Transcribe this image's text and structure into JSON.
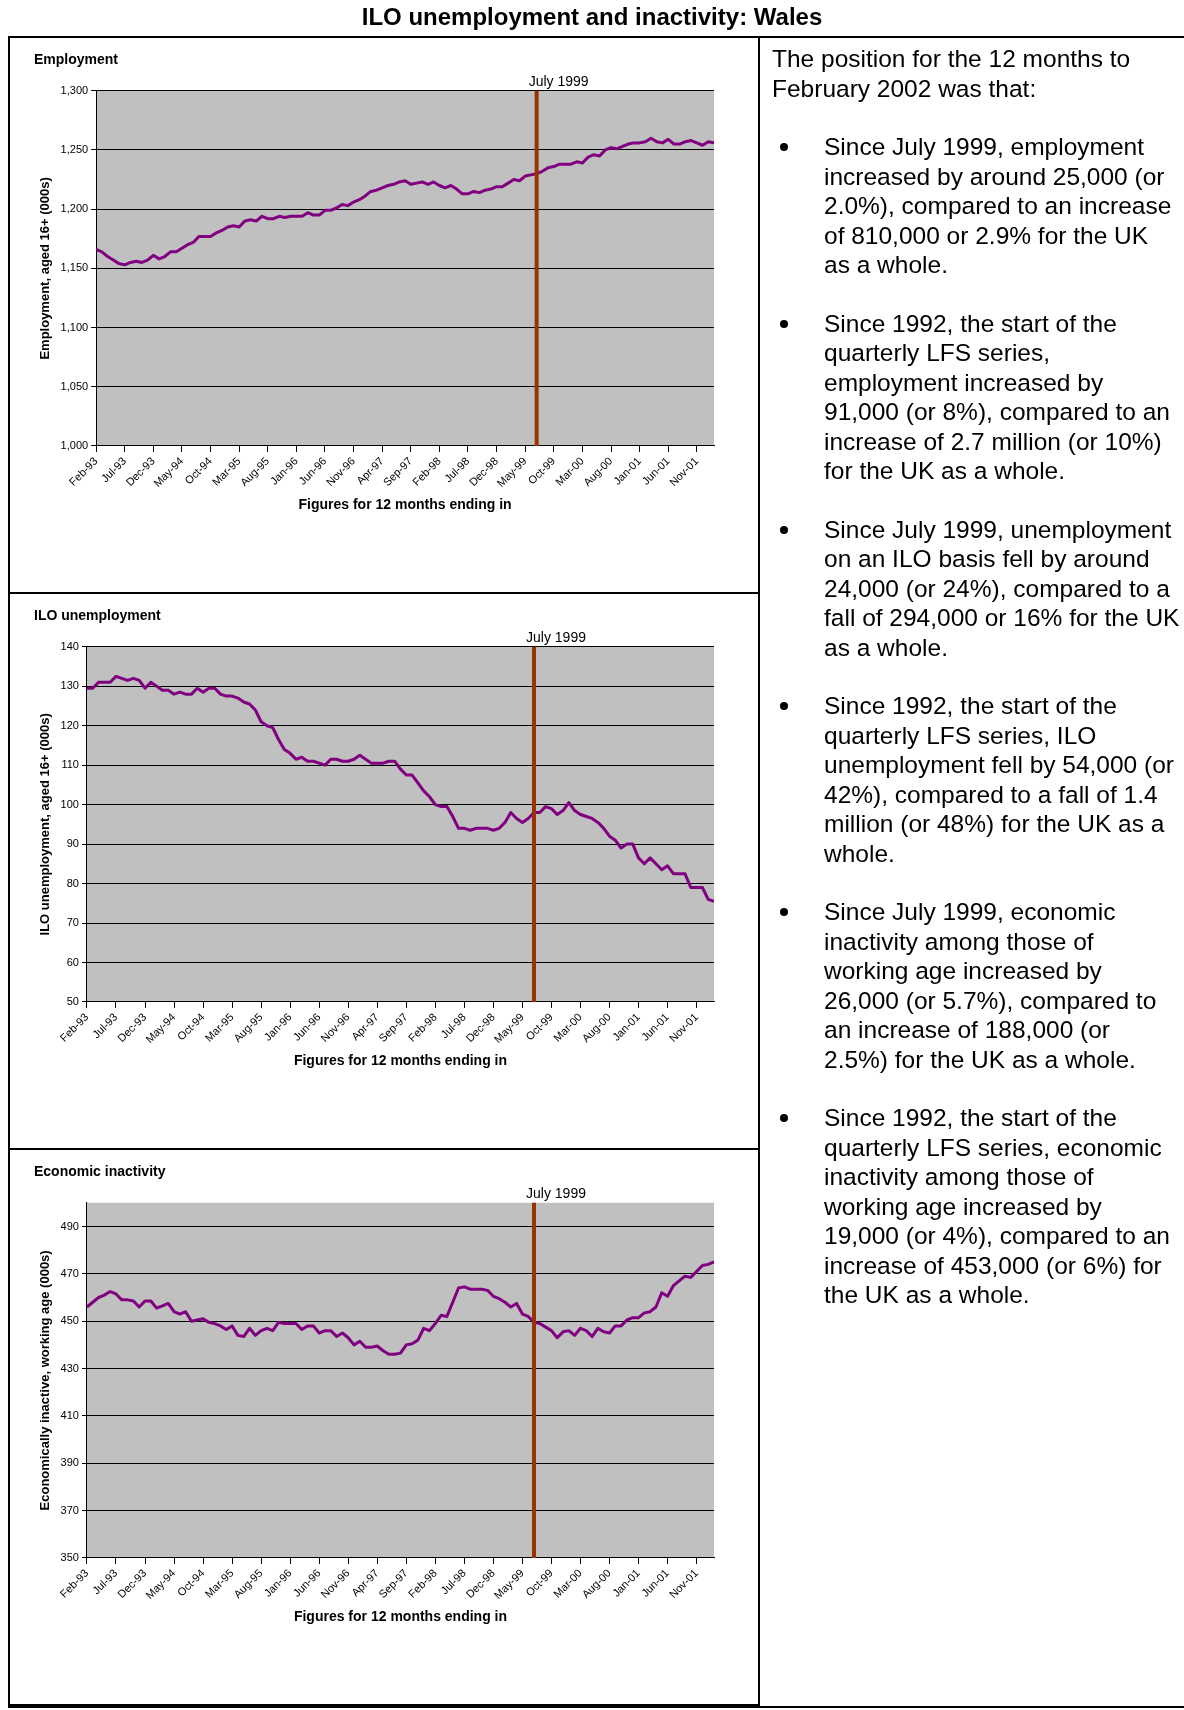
{
  "chart_data": [
    {
      "type": "line",
      "title": "Employment",
      "xlabel": "Figures for 12 months ending in",
      "ylabel": "Employment, aged 16+ (000s)",
      "color": "#800080",
      "grid": "y",
      "x": [
        "1993-02",
        "1993-03",
        "1993-04",
        "1993-05",
        "1993-06",
        "1993-07",
        "1993-08",
        "1993-09",
        "1993-10",
        "1993-11",
        "1993-12",
        "1994-01",
        "1994-02",
        "1994-03",
        "1994-04",
        "1994-05",
        "1994-06",
        "1994-07",
        "1994-08",
        "1994-09",
        "1994-10",
        "1994-11",
        "1994-12",
        "1995-01",
        "1995-02",
        "1995-03",
        "1995-04",
        "1995-05",
        "1995-06",
        "1995-07",
        "1995-08",
        "1995-09",
        "1995-10",
        "1995-11",
        "1995-12",
        "1996-01",
        "1996-02",
        "1996-03",
        "1996-04",
        "1996-05",
        "1996-06",
        "1996-07",
        "1996-08",
        "1996-09",
        "1996-10",
        "1996-11",
        "1996-12",
        "1997-01",
        "1997-02",
        "1997-03",
        "1997-04",
        "1997-05",
        "1997-06",
        "1997-07",
        "1997-08",
        "1997-09",
        "1997-10",
        "1997-11",
        "1997-12",
        "1998-01",
        "1998-02",
        "1998-03",
        "1998-04",
        "1998-05",
        "1998-06",
        "1998-07",
        "1998-08",
        "1998-09",
        "1998-10",
        "1998-11",
        "1998-12",
        "1999-01",
        "1999-02",
        "1999-03",
        "1999-04",
        "1999-05",
        "1999-06",
        "1999-07",
        "1999-08",
        "1999-09",
        "1999-10",
        "1999-11",
        "1999-12",
        "2000-01",
        "2000-02",
        "2000-03",
        "2000-04",
        "2000-05",
        "2000-06",
        "2000-07",
        "2000-08",
        "2000-09",
        "2000-10",
        "2000-11",
        "2000-12",
        "2001-01",
        "2001-02",
        "2001-03",
        "2001-04",
        "2001-05",
        "2001-06",
        "2001-07",
        "2001-08",
        "2001-09",
        "2001-10",
        "2001-11",
        "2001-12",
        "2002-01",
        "2002-02"
      ],
      "values": [
        1166,
        1164,
        1160,
        1157,
        1154,
        1153,
        1155,
        1156,
        1155,
        1157,
        1161,
        1158,
        1160,
        1164,
        1164,
        1167,
        1170,
        1172,
        1177,
        1177,
        1177,
        1180,
        1182,
        1185,
        1186,
        1185,
        1190,
        1191,
        1190,
        1194,
        1192,
        1192,
        1194,
        1193,
        1194,
        1194,
        1194,
        1197,
        1195,
        1195,
        1199,
        1199,
        1201,
        1204,
        1203,
        1206,
        1208,
        1211,
        1215,
        1216,
        1218,
        1220,
        1221,
        1223,
        1224,
        1221,
        1222,
        1223,
        1221,
        1223,
        1220,
        1218,
        1220,
        1217,
        1213,
        1213,
        1215,
        1214,
        1216,
        1217,
        1219,
        1219,
        1222,
        1225,
        1224,
        1228,
        1229,
        1230,
        1232,
        1235,
        1236,
        1238,
        1238,
        1238,
        1240,
        1239,
        1244,
        1246,
        1245,
        1250,
        1252,
        1251,
        1253,
        1255,
        1256,
        1256,
        1257,
        1260,
        1257,
        1256,
        1259,
        1255,
        1255,
        1257,
        1258,
        1256,
        1254,
        1257,
        1256
      ],
      "xlim": [
        "1993-02",
        "2002-02"
      ],
      "xticks": [
        {
          "value": "1993-02",
          "label": "Feb-93"
        },
        {
          "value": "1993-07",
          "label": "Jul-93"
        },
        {
          "value": "1993-12",
          "label": "Dec-93"
        },
        {
          "value": "1994-05",
          "label": "May-94"
        },
        {
          "value": "1994-10",
          "label": "Oct-94"
        },
        {
          "value": "1995-03",
          "label": "Mar-95"
        },
        {
          "value": "1995-08",
          "label": "Aug-95"
        },
        {
          "value": "1996-01",
          "label": "Jan-96"
        },
        {
          "value": "1996-06",
          "label": "Jun-96"
        },
        {
          "value": "1996-11",
          "label": "Nov-96"
        },
        {
          "value": "1997-04",
          "label": "Apr-97"
        },
        {
          "value": "1997-09",
          "label": "Sep-97"
        },
        {
          "value": "1998-02",
          "label": "Feb-98"
        },
        {
          "value": "1998-07",
          "label": "Jul-98"
        },
        {
          "value": "1998-12",
          "label": "Dec-98"
        },
        {
          "value": "1999-05",
          "label": "May-99"
        },
        {
          "value": "1999-10",
          "label": "Oct-99"
        },
        {
          "value": "2000-03",
          "label": "Mar-00"
        },
        {
          "value": "2000-08",
          "label": "Aug-00"
        },
        {
          "value": "2001-01",
          "label": "Jan-01"
        },
        {
          "value": "2001-06",
          "label": "Jun-01"
        },
        {
          "value": "2001-11",
          "label": "Nov-01"
        }
      ],
      "ylim": [
        1000,
        1300
      ],
      "yticks": [
        {
          "value": 1000,
          "label": "1,000"
        },
        {
          "value": 1050,
          "label": "1,050"
        },
        {
          "value": 1100,
          "label": "1,100"
        },
        {
          "value": 1150,
          "label": "1,150"
        },
        {
          "value": 1200,
          "label": "1,200"
        },
        {
          "value": 1250,
          "label": "1,250"
        },
        {
          "value": 1300,
          "label": "1,300"
        }
      ],
      "ref_lines": [
        {
          "axis": "x",
          "value": "1999-07",
          "label": "July 1999",
          "color": "#993300"
        }
      ]
    },
    {
      "type": "line",
      "title": "ILO unemployment",
      "xlabel": "Figures for 12 months ending in",
      "ylabel": "ILO unemployment, aged 16+ (000s)",
      "color": "#800080",
      "grid": "y",
      "x": [
        "1993-02",
        "1993-03",
        "1993-04",
        "1993-05",
        "1993-06",
        "1993-07",
        "1993-08",
        "1993-09",
        "1993-10",
        "1993-11",
        "1993-12",
        "1994-01",
        "1994-02",
        "1994-03",
        "1994-04",
        "1994-05",
        "1994-06",
        "1994-07",
        "1994-08",
        "1994-09",
        "1994-10",
        "1994-11",
        "1994-12",
        "1995-01",
        "1995-02",
        "1995-03",
        "1995-04",
        "1995-05",
        "1995-06",
        "1995-07",
        "1995-08",
        "1995-09",
        "1995-10",
        "1995-11",
        "1995-12",
        "1996-01",
        "1996-02",
        "1996-03",
        "1996-04",
        "1996-05",
        "1996-06",
        "1996-07",
        "1996-08",
        "1996-09",
        "1996-10",
        "1996-11",
        "1996-12",
        "1997-01",
        "1997-02",
        "1997-03",
        "1997-04",
        "1997-05",
        "1997-06",
        "1997-07",
        "1997-08",
        "1997-09",
        "1997-10",
        "1997-11",
        "1997-12",
        "1998-01",
        "1998-02",
        "1998-03",
        "1998-04",
        "1998-05",
        "1998-06",
        "1998-07",
        "1998-08",
        "1998-09",
        "1998-10",
        "1998-11",
        "1998-12",
        "1999-01",
        "1999-02",
        "1999-03",
        "1999-04",
        "1999-05",
        "1999-06",
        "1999-07",
        "1999-08",
        "1999-09",
        "1999-10",
        "1999-11",
        "1999-12",
        "2000-01",
        "2000-02",
        "2000-03",
        "2000-04",
        "2000-05",
        "2000-06",
        "2000-07",
        "2000-08",
        "2000-09",
        "2000-10",
        "2000-11",
        "2000-12",
        "2001-01",
        "2001-02",
        "2001-03",
        "2001-04",
        "2001-05",
        "2001-06",
        "2001-07",
        "2001-08",
        "2001-09",
        "2001-10",
        "2001-11",
        "2001-12",
        "2002-01",
        "2002-02"
      ],
      "values": [
        129.5,
        129.5,
        131,
        131,
        131,
        132.5,
        132,
        131.5,
        132,
        131.5,
        129.5,
        131,
        130,
        129,
        129,
        128,
        128.5,
        128,
        128,
        129.5,
        128.5,
        129.5,
        129.5,
        128,
        127.5,
        127.5,
        127,
        126,
        125.5,
        124,
        121,
        120,
        119.5,
        116.5,
        114,
        113,
        111.5,
        112,
        111,
        111,
        110.5,
        110,
        111.5,
        111.5,
        111,
        111,
        111.5,
        112.5,
        111.5,
        110.5,
        110.5,
        110.5,
        111,
        111,
        109,
        107.5,
        107.5,
        105.5,
        103.5,
        102,
        100,
        99.5,
        99.5,
        97,
        94,
        94,
        93.5,
        94,
        94,
        94,
        93.5,
        94,
        95.5,
        98,
        96.5,
        95.5,
        96.5,
        98,
        98,
        99.5,
        99,
        97.5,
        98.5,
        100.5,
        98.5,
        97.5,
        97,
        96.5,
        95.5,
        94,
        92,
        91,
        89,
        90,
        90,
        86.5,
        85,
        86.5,
        85,
        83.5,
        84.5,
        82.5,
        82.5,
        82.5,
        79,
        79,
        79,
        76,
        75.5
      ],
      "xlim": [
        "1993-02",
        "2002-02"
      ],
      "xticks": [
        {
          "value": "1993-02",
          "label": "Feb-93"
        },
        {
          "value": "1993-07",
          "label": "Jul-93"
        },
        {
          "value": "1993-12",
          "label": "Dec-93"
        },
        {
          "value": "1994-05",
          "label": "May-94"
        },
        {
          "value": "1994-10",
          "label": "Oct-94"
        },
        {
          "value": "1995-03",
          "label": "Mar-95"
        },
        {
          "value": "1995-08",
          "label": "Aug-95"
        },
        {
          "value": "1996-01",
          "label": "Jan-96"
        },
        {
          "value": "1996-06",
          "label": "Jun-96"
        },
        {
          "value": "1996-11",
          "label": "Nov-96"
        },
        {
          "value": "1997-04",
          "label": "Apr-97"
        },
        {
          "value": "1997-09",
          "label": "Sep-97"
        },
        {
          "value": "1998-02",
          "label": "Feb-98"
        },
        {
          "value": "1998-07",
          "label": "Jul-98"
        },
        {
          "value": "1998-12",
          "label": "Dec-98"
        },
        {
          "value": "1999-05",
          "label": "May-99"
        },
        {
          "value": "1999-10",
          "label": "Oct-99"
        },
        {
          "value": "2000-03",
          "label": "Mar-00"
        },
        {
          "value": "2000-08",
          "label": "Aug-00"
        },
        {
          "value": "2001-01",
          "label": "Jan-01"
        },
        {
          "value": "2001-06",
          "label": "Jun-01"
        },
        {
          "value": "2001-11",
          "label": "Nov-01"
        }
      ],
      "ylim": [
        50,
        140
      ],
      "yticks": [
        50,
        60,
        70,
        80,
        90,
        100,
        110,
        120,
        130,
        140
      ],
      "ref_lines": [
        {
          "axis": "x",
          "value": "1999-07",
          "label": "July 1999",
          "color": "#993300"
        }
      ]
    },
    {
      "type": "line",
      "title": "Economic inactivity",
      "xlabel": "Figures for 12 months ending in",
      "ylabel": "Economically inactive, working age (000s)",
      "color": "#800080",
      "grid": "y",
      "x": [
        "1993-02",
        "1993-03",
        "1993-04",
        "1993-05",
        "1993-06",
        "1993-07",
        "1993-08",
        "1993-09",
        "1993-10",
        "1993-11",
        "1993-12",
        "1994-01",
        "1994-02",
        "1994-03",
        "1994-04",
        "1994-05",
        "1994-06",
        "1994-07",
        "1994-08",
        "1994-09",
        "1994-10",
        "1994-11",
        "1994-12",
        "1995-01",
        "1995-02",
        "1995-03",
        "1995-04",
        "1995-05",
        "1995-06",
        "1995-07",
        "1995-08",
        "1995-09",
        "1995-10",
        "1995-11",
        "1995-12",
        "1996-01",
        "1996-02",
        "1996-03",
        "1996-04",
        "1996-05",
        "1996-06",
        "1996-07",
        "1996-08",
        "1996-09",
        "1996-10",
        "1996-11",
        "1996-12",
        "1997-01",
        "1997-02",
        "1997-03",
        "1997-04",
        "1997-05",
        "1997-06",
        "1997-07",
        "1997-08",
        "1997-09",
        "1997-10",
        "1997-11",
        "1997-12",
        "1998-01",
        "1998-02",
        "1998-03",
        "1998-04",
        "1998-05",
        "1998-06",
        "1998-07",
        "1998-08",
        "1998-09",
        "1998-10",
        "1998-11",
        "1998-12",
        "1999-01",
        "1999-02",
        "1999-03",
        "1999-04",
        "1999-05",
        "1999-06",
        "1999-07",
        "1999-08",
        "1999-09",
        "1999-10",
        "1999-11",
        "1999-12",
        "2000-01",
        "2000-02",
        "2000-03",
        "2000-04",
        "2000-05",
        "2000-06",
        "2000-07",
        "2000-08",
        "2000-09",
        "2000-10",
        "2000-11",
        "2000-12",
        "2001-01",
        "2001-02",
        "2001-03",
        "2001-04",
        "2001-05",
        "2001-06",
        "2001-07",
        "2001-08",
        "2001-09",
        "2001-10",
        "2001-11",
        "2001-12",
        "2002-01",
        "2002-02"
      ],
      "values": [
        456,
        458,
        460,
        461,
        462.5,
        461.5,
        459,
        459,
        458.5,
        456,
        458.5,
        458.5,
        455.5,
        456.5,
        457.5,
        454,
        453,
        454,
        450,
        450.5,
        451,
        449.5,
        449,
        448,
        446.5,
        448,
        444,
        443.5,
        447,
        444,
        446,
        447,
        446,
        449.5,
        449,
        449,
        449,
        446.5,
        448,
        448,
        445,
        446,
        446,
        443.5,
        445,
        443,
        440,
        441.5,
        439,
        439,
        439.5,
        437.5,
        436,
        436,
        436.5,
        440,
        440.5,
        442,
        447,
        446,
        449,
        452.5,
        452,
        458,
        464,
        464.5,
        463.5,
        463.5,
        463.5,
        463,
        460.5,
        459.5,
        458,
        456,
        457.5,
        453,
        452,
        449.5,
        449,
        447.5,
        446,
        443,
        445.5,
        446,
        444,
        447,
        446,
        443.5,
        447,
        445.5,
        445,
        448,
        448,
        450.5,
        451.5,
        451.5,
        453.5,
        454,
        456,
        462,
        460.5,
        465,
        467,
        469,
        468.5,
        471,
        473.5,
        474,
        475
      ],
      "xlim": [
        "1993-02",
        "2002-02"
      ],
      "xticks": [
        {
          "value": "1993-02",
          "label": "Feb-93"
        },
        {
          "value": "1993-07",
          "label": "Jul-93"
        },
        {
          "value": "1993-12",
          "label": "Dec-93"
        },
        {
          "value": "1994-05",
          "label": "May-94"
        },
        {
          "value": "1994-10",
          "label": "Oct-94"
        },
        {
          "value": "1995-03",
          "label": "Mar-95"
        },
        {
          "value": "1995-08",
          "label": "Aug-95"
        },
        {
          "value": "1996-01",
          "label": "Jan-96"
        },
        {
          "value": "1996-06",
          "label": "Jun-96"
        },
        {
          "value": "1996-11",
          "label": "Nov-96"
        },
        {
          "value": "1997-04",
          "label": "Apr-97"
        },
        {
          "value": "1997-09",
          "label": "Sep-97"
        },
        {
          "value": "1998-02",
          "label": "Feb-98"
        },
        {
          "value": "1998-07",
          "label": "Jul-98"
        },
        {
          "value": "1998-12",
          "label": "Dec-98"
        },
        {
          "value": "1999-05",
          "label": "May-99"
        },
        {
          "value": "1999-10",
          "label": "Oct-99"
        },
        {
          "value": "2000-03",
          "label": "Mar-00"
        },
        {
          "value": "2000-08",
          "label": "Aug-00"
        },
        {
          "value": "2001-01",
          "label": "Jan-01"
        },
        {
          "value": "2001-06",
          "label": "Jun-01"
        },
        {
          "value": "2001-11",
          "label": "Nov-01"
        }
      ],
      "ylim": [
        350,
        500
      ],
      "yticks": [
        350,
        370,
        390,
        410,
        430,
        450,
        470,
        490
      ],
      "ref_lines": [
        {
          "axis": "x",
          "value": "1999-07",
          "label": "July 1999",
          "color": "#993300"
        }
      ]
    },
    {
      "type": "other",
      "title": "ILO unemployment and inactivity: Wales",
      "annotations": [
        "The position for the 12 months to February 2002 was that:",
        "Since July 1999, employment increased by around 25,000 (or 2.0%), compared to an increase of 810,000 or 2.9% for the UK as a whole.",
        "Since 1992, the start of the quarterly LFS series, employment increased by 91,000 (or 8%), compared to an increase of 2.7 million (or 10%) for the UK as a whole.",
        "Since July 1999, unemployment on an ILO basis fell by around 24,000 (or 24%),  compared to a fall of 294,000 or 16% for the UK as a whole.",
        "Since 1992, the start of the quarterly LFS series, ILO unemployment fell by 54,000 (or 42%), compared to a fall of 1.4 million (or 48%) for the UK as a whole.",
        "Since July 1999, economic inactivity among those of working age increased by 26,000 (or 5.7%), compared to an increase of 188,000 (or 2.5%) for the UK as a whole.",
        "Since 1992, the start of the quarterly LFS series, economic inactivity among those of working age increased by 19,000 (or 4%), compared to an increase of 453,000 (or 6%) for the UK as a whole."
      ]
    }
  ]
}
